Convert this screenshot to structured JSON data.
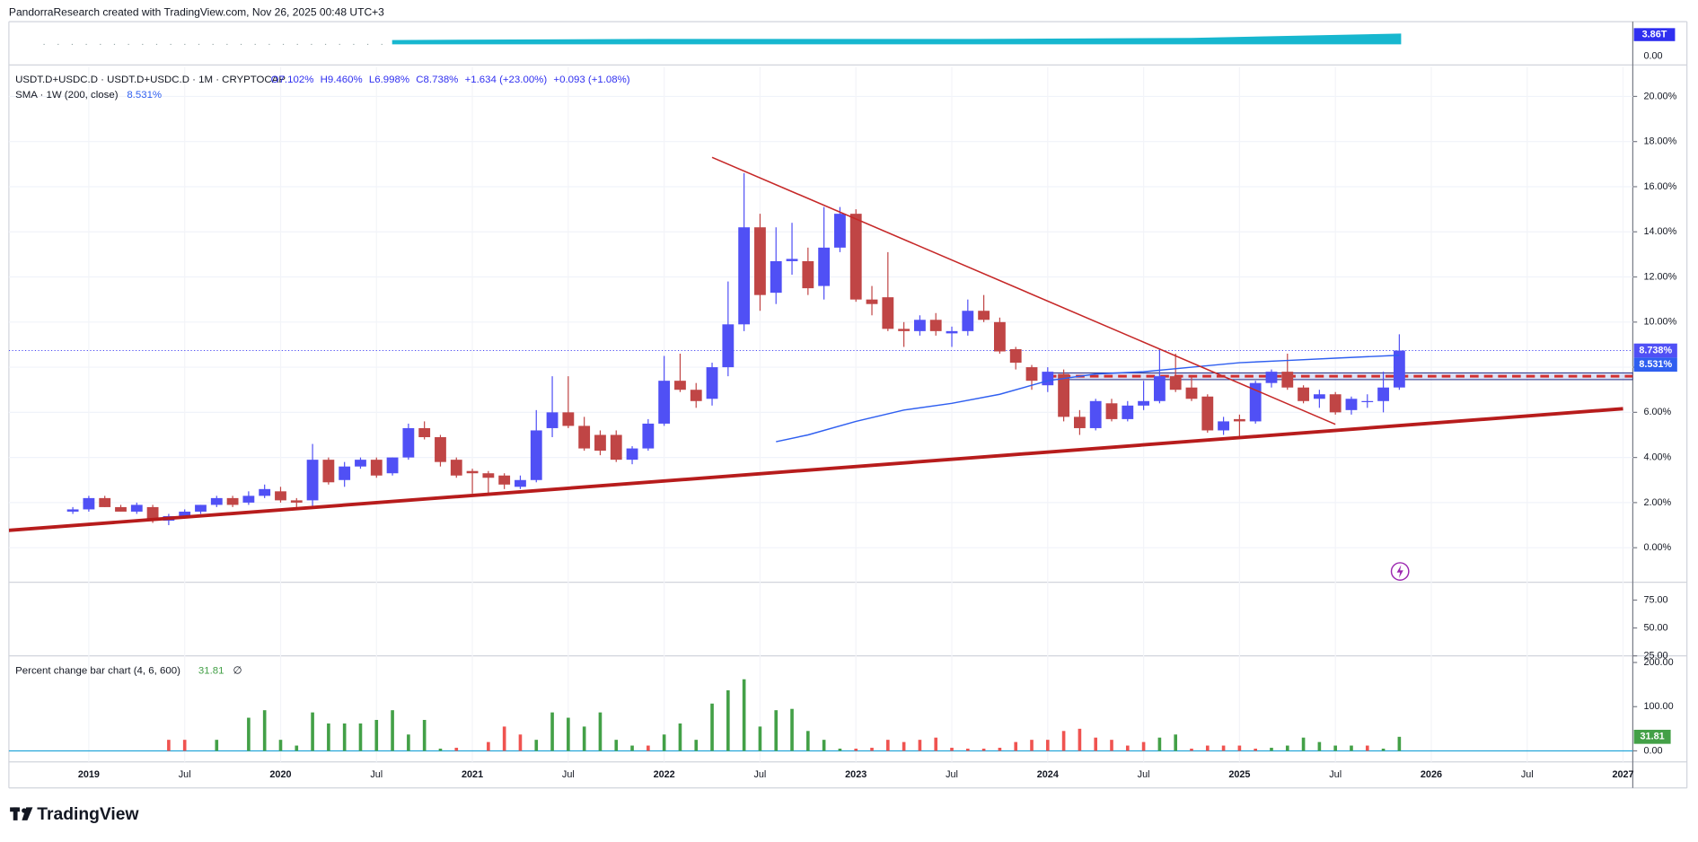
{
  "header": {
    "text": "PandorraResearch created with TradingView.com, Nov 26, 2025 00:48 UTC+3"
  },
  "top_strip": {
    "labels": [
      "3.86T",
      "0.00"
    ]
  },
  "footer": {
    "logo": "TradingView"
  },
  "chart_data": [
    {
      "type": "candlestick",
      "symbol": "USDT.D+USDC.D · USDT.D+USDC.D · 1M · CRYPTOCAP",
      "legend_values": [
        "O7.102%",
        "H9.460%",
        "L6.998%",
        "C8.738%",
        "+1.634 (+23.00%)",
        "+0.093 (+1.08%)"
      ],
      "x": [
        "2018-12",
        "2019-01",
        "2019-02",
        "2019-03",
        "2019-04",
        "2019-05",
        "2019-06",
        "2019-07",
        "2019-08",
        "2019-09",
        "2019-10",
        "2019-11",
        "2019-12",
        "2020-01",
        "2020-02",
        "2020-03",
        "2020-04",
        "2020-05",
        "2020-06",
        "2020-07",
        "2020-08",
        "2020-09",
        "2020-10",
        "2020-11",
        "2020-12",
        "2021-01",
        "2021-02",
        "2021-03",
        "2021-04",
        "2021-05",
        "2021-06",
        "2021-07",
        "2021-08",
        "2021-09",
        "2021-10",
        "2021-11",
        "2021-12",
        "2022-01",
        "2022-02",
        "2022-03",
        "2022-04",
        "2022-05",
        "2022-06",
        "2022-07",
        "2022-08",
        "2022-09",
        "2022-10",
        "2022-11",
        "2022-12",
        "2023-01",
        "2023-02",
        "2023-03",
        "2023-04",
        "2023-05",
        "2023-06",
        "2023-07",
        "2023-08",
        "2023-09",
        "2023-10",
        "2023-11",
        "2023-12",
        "2024-01",
        "2024-02",
        "2024-03",
        "2024-04",
        "2024-05",
        "2024-06",
        "2024-07",
        "2024-08",
        "2024-09",
        "2024-10",
        "2024-11",
        "2024-12",
        "2025-01",
        "2025-02",
        "2025-03",
        "2025-04",
        "2025-05",
        "2025-06",
        "2025-07",
        "2025-08",
        "2025-09",
        "2025-10",
        "2025-11"
      ],
      "open": [
        1.6,
        1.7,
        2.2,
        1.8,
        1.6,
        1.8,
        1.2,
        1.4,
        1.6,
        1.9,
        2.2,
        2.0,
        2.3,
        2.5,
        2.1,
        2.1,
        3.9,
        3.0,
        3.6,
        3.9,
        3.3,
        4.0,
        5.3,
        4.9,
        3.9,
        3.4,
        3.3,
        3.2,
        2.7,
        3.0,
        5.3,
        6.0,
        5.4,
        5.0,
        5.0,
        3.9,
        4.4,
        5.5,
        7.4,
        7.0,
        6.6,
        8.0,
        9.9,
        14.2,
        11.3,
        12.7,
        12.7,
        11.6,
        13.3,
        14.8,
        11.0,
        11.1,
        9.7,
        9.6,
        10.1,
        9.5,
        9.6,
        10.5,
        10.0,
        8.8,
        8.0,
        7.2,
        7.7,
        5.8,
        5.3,
        6.4,
        5.7,
        6.3,
        6.5,
        7.6,
        7.1,
        6.7,
        5.2,
        5.7,
        5.6,
        7.3,
        7.8,
        7.1,
        6.6,
        6.8,
        6.1,
        6.5,
        6.5,
        7.102
      ],
      "high": [
        1.8,
        2.3,
        2.3,
        1.9,
        2.0,
        1.9,
        1.5,
        1.7,
        1.9,
        2.3,
        2.3,
        2.5,
        2.8,
        2.7,
        2.2,
        4.6,
        4.0,
        3.8,
        4.0,
        4.0,
        4.0,
        5.5,
        5.6,
        5.0,
        4.0,
        3.5,
        3.4,
        3.3,
        3.2,
        6.1,
        7.6,
        7.6,
        5.8,
        5.2,
        5.2,
        4.5,
        5.7,
        8.5,
        8.6,
        7.3,
        8.2,
        11.8,
        16.6,
        14.8,
        14.2,
        14.4,
        13.3,
        15.1,
        15.1,
        15.0,
        11.6,
        13.1,
        10.0,
        10.3,
        10.4,
        9.8,
        11.0,
        11.2,
        10.2,
        8.9,
        8.1,
        8.0,
        7.9,
        6.1,
        6.6,
        6.6,
        6.5,
        7.4,
        8.8,
        8.6,
        7.6,
        6.8,
        5.8,
        5.9,
        7.4,
        7.9,
        8.6,
        7.2,
        7.0,
        6.9,
        6.7,
        6.8,
        7.8,
        9.46
      ],
      "low": [
        1.5,
        1.6,
        1.8,
        1.6,
        1.5,
        1.1,
        1.0,
        1.3,
        1.5,
        1.8,
        1.8,
        1.9,
        2.2,
        2.0,
        1.8,
        1.8,
        2.8,
        2.7,
        3.5,
        3.1,
        3.2,
        3.9,
        4.8,
        3.6,
        3.1,
        2.4,
        2.4,
        2.6,
        2.6,
        2.9,
        4.9,
        5.3,
        4.3,
        4.1,
        3.8,
        3.7,
        4.3,
        5.4,
        6.9,
        6.2,
        6.3,
        7.6,
        9.6,
        10.5,
        10.8,
        12.1,
        11.2,
        11.0,
        13.1,
        10.9,
        10.3,
        9.6,
        8.9,
        9.4,
        9.4,
        8.9,
        9.4,
        10.0,
        8.6,
        7.9,
        7.0,
        6.9,
        5.6,
        5.0,
        5.2,
        5.6,
        5.6,
        6.1,
        6.4,
        6.9,
        6.5,
        5.1,
        5.0,
        4.9,
        5.5,
        7.1,
        7.0,
        6.4,
        6.2,
        5.9,
        5.9,
        6.2,
        6.0,
        6.998
      ],
      "close": [
        1.7,
        2.2,
        1.8,
        1.6,
        1.9,
        1.2,
        1.4,
        1.6,
        1.9,
        2.2,
        1.9,
        2.3,
        2.6,
        2.1,
        2.0,
        3.9,
        2.9,
        3.6,
        3.9,
        3.2,
        4.0,
        5.3,
        4.9,
        3.8,
        3.2,
        3.3,
        3.1,
        2.8,
        3.0,
        5.2,
        6.0,
        5.4,
        4.4,
        4.3,
        3.9,
        4.4,
        5.5,
        7.4,
        7.0,
        6.5,
        8.0,
        9.9,
        14.2,
        11.2,
        12.7,
        12.8,
        11.5,
        13.3,
        14.8,
        11.0,
        10.8,
        9.7,
        9.6,
        10.1,
        9.6,
        9.6,
        10.5,
        10.1,
        8.7,
        8.2,
        7.4,
        7.8,
        5.8,
        5.3,
        6.5,
        5.7,
        6.3,
        6.5,
        7.6,
        7.0,
        6.6,
        5.2,
        5.6,
        5.6,
        7.3,
        7.8,
        7.1,
        6.5,
        6.8,
        6.0,
        6.6,
        6.5,
        7.1,
        8.738
      ],
      "last_label": "8.738%",
      "up_color": "#5050f5",
      "down_color": "#c04545",
      "xlim": [
        "2018-08",
        "2027-01"
      ],
      "xticks": [
        {
          "value": "2019-01",
          "label": "2019"
        },
        {
          "value": "2019-07",
          "label": "Jul"
        },
        {
          "value": "2020-01",
          "label": "2020"
        },
        {
          "value": "2020-07",
          "label": "Jul"
        },
        {
          "value": "2021-01",
          "label": "2021"
        },
        {
          "value": "2021-07",
          "label": "Jul"
        },
        {
          "value": "2022-01",
          "label": "2022"
        },
        {
          "value": "2022-07",
          "label": "Jul"
        },
        {
          "value": "2023-01",
          "label": "2023"
        },
        {
          "value": "2023-07",
          "label": "Jul"
        },
        {
          "value": "2024-01",
          "label": "2024"
        },
        {
          "value": "2024-07",
          "label": "Jul"
        },
        {
          "value": "2025-01",
          "label": "2025"
        },
        {
          "value": "2025-07",
          "label": "Jul"
        },
        {
          "value": "2026-01",
          "label": "2026"
        },
        {
          "value": "2026-07",
          "label": "Jul"
        },
        {
          "value": "2027-01",
          "label": "2027"
        }
      ],
      "ylim": [
        -1.53,
        21.3
      ],
      "yticks": [
        {
          "value": 0,
          "label": "0.00%"
        },
        {
          "value": 2,
          "label": "2.00%"
        },
        {
          "value": 4,
          "label": "4.00%"
        },
        {
          "value": 6,
          "label": "6.00%"
        },
        {
          "value": 8,
          "label": "8.00%"
        },
        {
          "value": 10,
          "label": "10.00%"
        },
        {
          "value": 12,
          "label": "12.00%"
        },
        {
          "value": 14,
          "label": "14.00%"
        },
        {
          "value": 16,
          "label": "16.00%"
        },
        {
          "value": 18,
          "label": "18.00%"
        },
        {
          "value": 20,
          "label": "20.00%"
        }
      ],
      "grid": true,
      "sma": {
        "name": "SMA · 1W (200, close)",
        "color": "#2f5ff0",
        "x": [
          "2022-08",
          "2022-10",
          "2023-01",
          "2023-04",
          "2023-07",
          "2023-10",
          "2024-01",
          "2024-04",
          "2024-07",
          "2024-10",
          "2025-01",
          "2025-04",
          "2025-07",
          "2025-11"
        ],
        "values": [
          4.7,
          5.0,
          5.6,
          6.1,
          6.4,
          6.8,
          7.4,
          7.7,
          7.8,
          8.0,
          8.2,
          8.3,
          8.4,
          8.531
        ],
        "last_label": "8.531%"
      },
      "trendlines": [
        {
          "x": [
            "2022-04",
            "2025-07"
          ],
          "y": [
            17.3,
            5.47
          ],
          "color": "#c62828",
          "width": 1.3
        },
        {
          "x": [
            "2018-08",
            "2027-01"
          ],
          "y": [
            0.77,
            6.16
          ],
          "color": "#b71c1c",
          "width": 3.2
        }
      ],
      "level": {
        "from": "2024-01",
        "value": 7.6,
        "band": [
          7.45,
          7.75
        ],
        "color": "#d32f2f"
      }
    },
    {
      "type": "line",
      "ylim": [
        25,
        91
      ],
      "yticks": [
        {
          "value": 25,
          "label": "25.00"
        },
        {
          "value": 50,
          "label": "50.00"
        },
        {
          "value": 75,
          "label": "75.00"
        }
      ]
    },
    {
      "type": "bar",
      "title": "Percent change bar chart (4, 6, 600)",
      "value_label": "31.81",
      "na_symbol": "∅",
      "values": [
        0,
        0,
        0,
        0,
        0,
        0,
        25,
        25,
        0,
        25,
        0,
        75,
        92,
        25,
        12,
        87,
        62,
        62,
        62,
        70,
        92,
        37,
        70,
        5,
        7,
        0,
        20,
        55,
        37,
        25,
        87,
        75,
        55,
        87,
        25,
        12,
        12,
        37,
        62,
        25,
        107,
        137,
        162,
        55,
        92,
        95,
        45,
        25,
        5,
        5,
        7,
        25,
        20,
        25,
        30,
        7,
        5,
        5,
        7,
        20,
        25,
        25,
        45,
        50,
        30,
        25,
        12,
        20,
        30,
        37,
        5,
        12,
        12,
        12,
        5,
        7,
        12,
        30,
        20,
        12,
        12,
        12,
        5,
        31.81
      ],
      "colors": [
        "#43a047",
        "#43a047",
        "#43a047",
        "#43a047",
        "#43a047",
        "#43a047",
        "#ef5350",
        "#ef5350",
        "#43a047",
        "#43a047",
        "#43a047",
        "#43a047",
        "#43a047",
        "#43a047",
        "#43a047",
        "#43a047",
        "#43a047",
        "#43a047",
        "#43a047",
        "#43a047",
        "#43a047",
        "#43a047",
        "#43a047",
        "#43a047",
        "#ef5350",
        "#ef5350",
        "#ef5350",
        "#ef5350",
        "#ef5350",
        "#43a047",
        "#43a047",
        "#43a047",
        "#43a047",
        "#43a047",
        "#43a047",
        "#43a047",
        "#ef5350",
        "#43a047",
        "#43a047",
        "#43a047",
        "#43a047",
        "#43a047",
        "#43a047",
        "#43a047",
        "#43a047",
        "#43a047",
        "#43a047",
        "#43a047",
        "#43a047",
        "#ef5350",
        "#ef5350",
        "#ef5350",
        "#ef5350",
        "#ef5350",
        "#ef5350",
        "#ef5350",
        "#ef5350",
        "#ef5350",
        "#ef5350",
        "#ef5350",
        "#ef5350",
        "#ef5350",
        "#ef5350",
        "#ef5350",
        "#ef5350",
        "#ef5350",
        "#ef5350",
        "#ef5350",
        "#43a047",
        "#43a047",
        "#ef5350",
        "#ef5350",
        "#ef5350",
        "#ef5350",
        "#ef5350",
        "#43a047",
        "#43a047",
        "#43a047",
        "#43a047",
        "#43a047",
        "#43a047",
        "#ef5350",
        "#43a047",
        "#43a047"
      ],
      "baseline_color": "#26a6d9",
      "ylim": [
        -25,
        215
      ],
      "yticks": [
        {
          "value": 0,
          "label": "0.00"
        },
        {
          "value": 100,
          "label": "100.00"
        },
        {
          "value": 200,
          "label": "200.00"
        }
      ]
    }
  ]
}
